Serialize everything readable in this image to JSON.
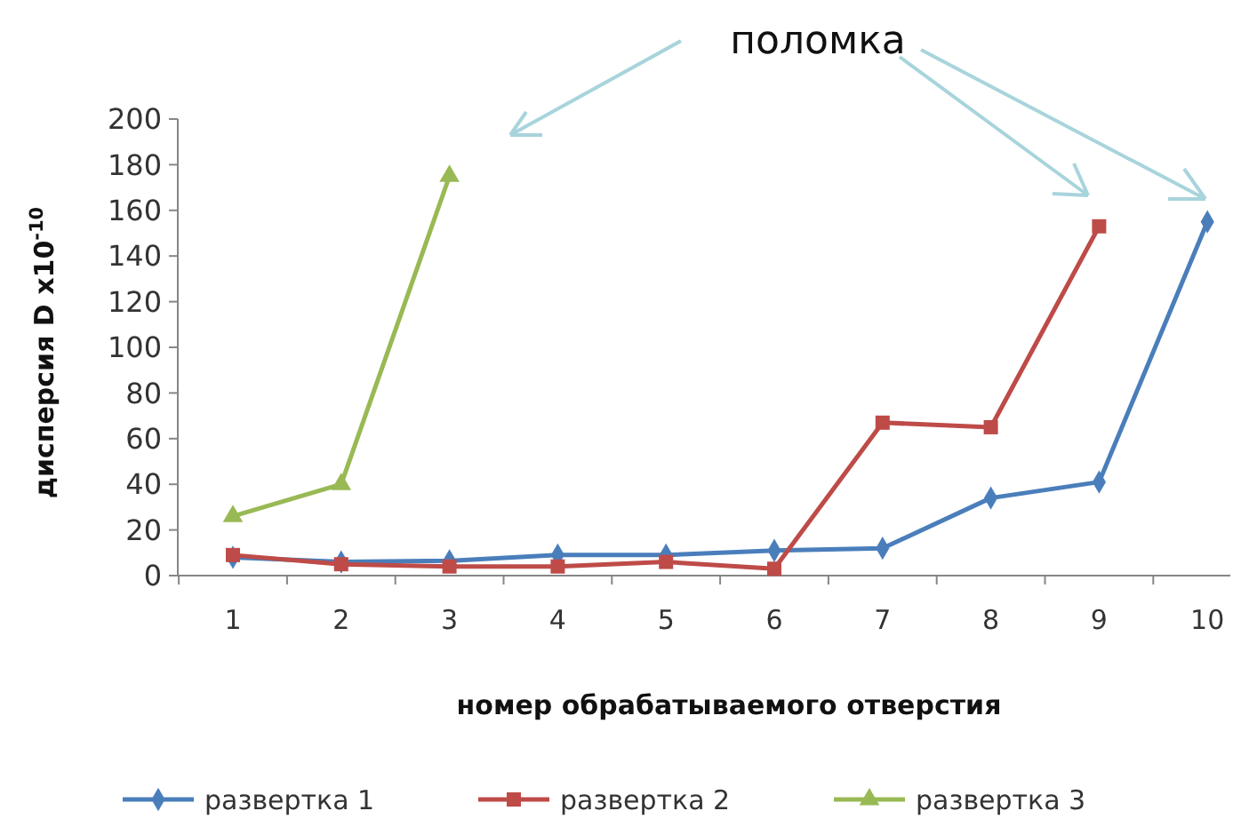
{
  "chart_data": {
    "type": "line",
    "xlabel": "номер обрабатываемого отверстия",
    "ylabel": "дисперсия D x10$^{-10}$",
    "annotations": [
      "поломка"
    ],
    "categories": [
      "1",
      "2",
      "3",
      "4",
      "5",
      "6",
      "7",
      "8",
      "9",
      "10"
    ],
    "ylim": [
      0,
      200
    ],
    "yticks": [
      0,
      20,
      40,
      60,
      80,
      100,
      120,
      140,
      160,
      180,
      200
    ],
    "grid": false,
    "legend": "bottom",
    "series": [
      {
        "name": "развертка 1",
        "color": "#4a7ebb",
        "marker": "diamond",
        "values": [
          8,
          6,
          6.5,
          9,
          9,
          11,
          12,
          34,
          41,
          155
        ]
      },
      {
        "name": "развертка 2",
        "color": "#be4b48",
        "marker": "square",
        "values": [
          9,
          5,
          4,
          4,
          6,
          3,
          67,
          65,
          153,
          null
        ]
      },
      {
        "name": "развертка 3",
        "color": "#98b954",
        "marker": "triangle",
        "values": [
          26,
          40,
          175,
          null,
          null,
          null,
          null,
          null,
          null,
          null
        ]
      }
    ]
  }
}
